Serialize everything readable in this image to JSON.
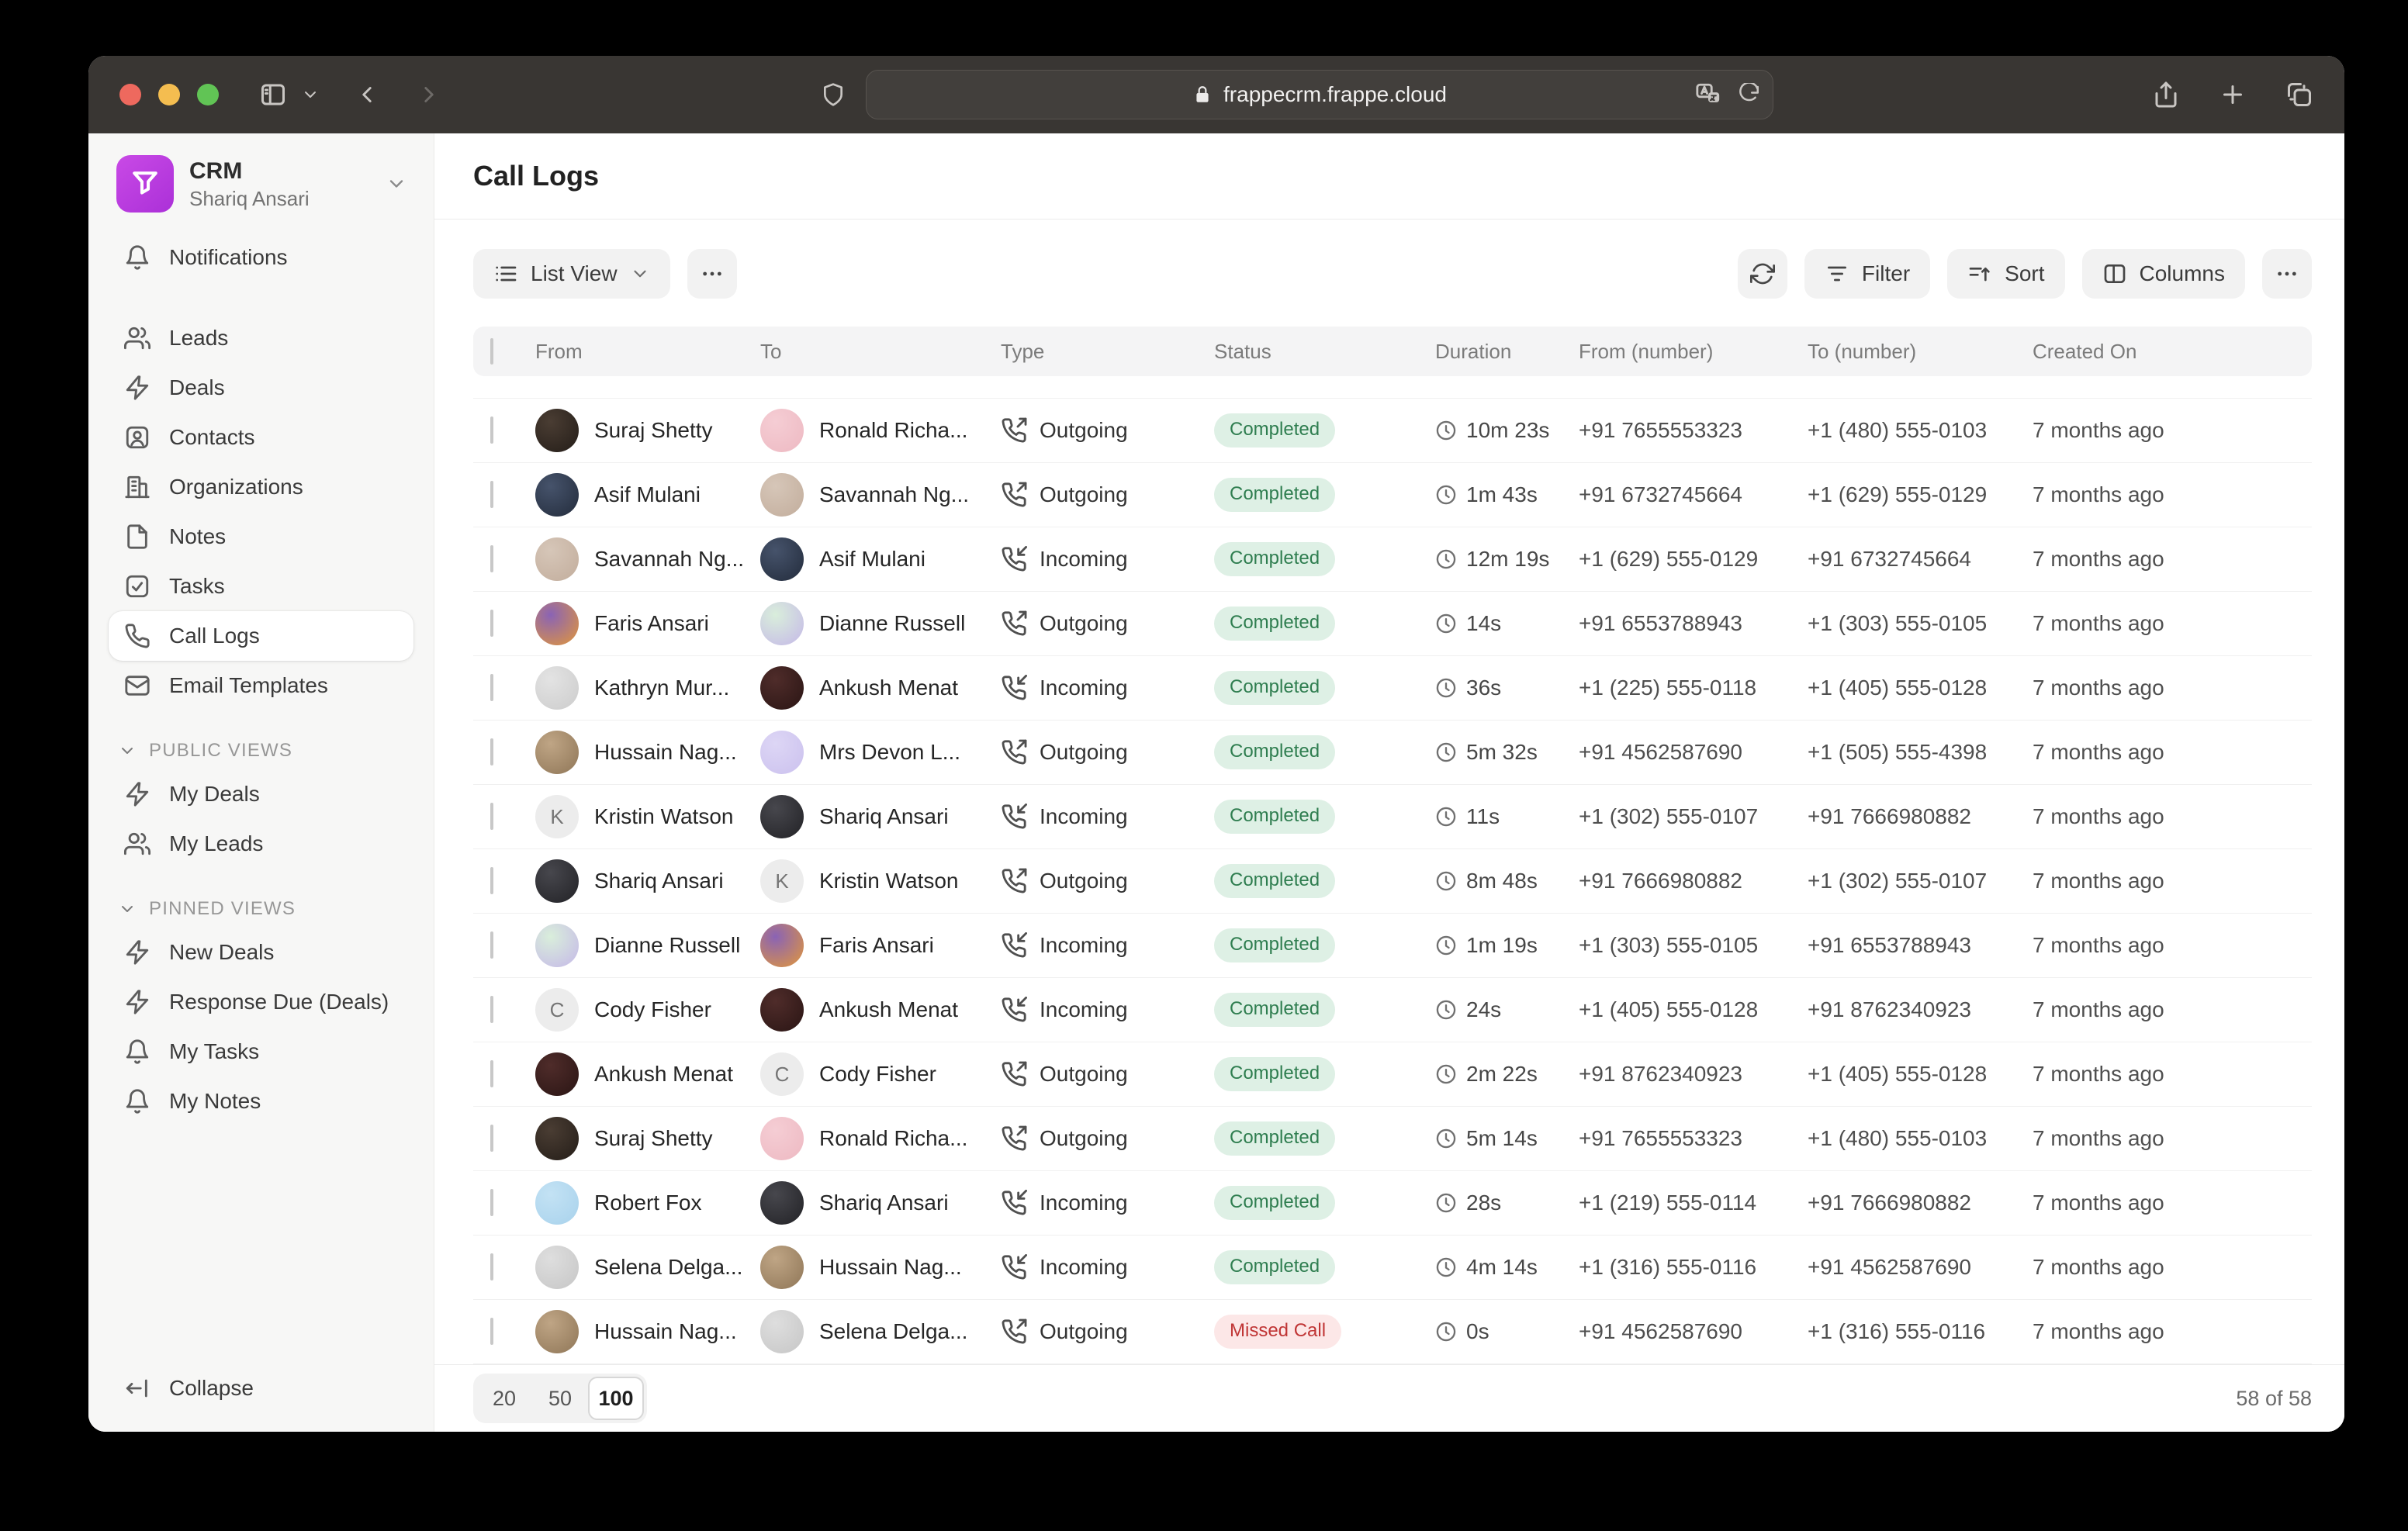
{
  "browser": {
    "url": "frappecrm.frappe.cloud"
  },
  "app_header": {
    "name": "CRM",
    "user": "Shariq Ansari"
  },
  "page": {
    "title": "Call Logs"
  },
  "sidebar": {
    "top_items": [
      {
        "label": "Notifications",
        "icon": "bell-icon",
        "selected": false
      }
    ],
    "nav_items": [
      {
        "label": "Leads",
        "icon": "users-icon",
        "selected": false
      },
      {
        "label": "Deals",
        "icon": "zap-icon",
        "selected": false
      },
      {
        "label": "Contacts",
        "icon": "contact-icon",
        "selected": false
      },
      {
        "label": "Organizations",
        "icon": "building-icon",
        "selected": false
      },
      {
        "label": "Notes",
        "icon": "file-icon",
        "selected": false
      },
      {
        "label": "Tasks",
        "icon": "check-square-icon",
        "selected": false
      },
      {
        "label": "Call Logs",
        "icon": "phone-icon",
        "selected": true
      },
      {
        "label": "Email Templates",
        "icon": "mail-icon",
        "selected": false
      }
    ],
    "sections": [
      {
        "title": "PUBLIC VIEWS",
        "items": [
          {
            "label": "My Deals",
            "icon": "zap-icon"
          },
          {
            "label": "My Leads",
            "icon": "users-icon"
          }
        ]
      },
      {
        "title": "PINNED VIEWS",
        "items": [
          {
            "label": "New Deals",
            "icon": "zap-icon"
          },
          {
            "label": "Response Due (Deals)",
            "icon": "zap-icon"
          },
          {
            "label": "My Tasks",
            "icon": "bell-icon"
          },
          {
            "label": "My Notes",
            "icon": "bell-icon"
          }
        ]
      }
    ],
    "collapse_label": "Collapse"
  },
  "toolbar": {
    "view_label": "List View",
    "filter_label": "Filter",
    "sort_label": "Sort",
    "columns_label": "Columns"
  },
  "table": {
    "columns": [
      "From",
      "To",
      "Type",
      "Status",
      "Duration",
      "From (number)",
      "To (number)",
      "Created On"
    ],
    "rows": [
      {
        "from": {
          "name": "Suraj Shetty",
          "avatar": {
            "bg": "#4a3d33",
            "bg2": "#241d18",
            "letter": ""
          }
        },
        "to": {
          "name": "Ronald Richa...",
          "avatar": {
            "bg": "#f5cdd4",
            "bg2": "#edb9c2",
            "letter": ""
          }
        },
        "type": "Outgoing",
        "status": "Completed",
        "duration": "10m 23s",
        "from_number": "+91 7655553323",
        "to_number": "+1 (480) 555-0103",
        "created": "7 months ago"
      },
      {
        "from": {
          "name": "Asif Mulani",
          "avatar": {
            "bg": "#46536b",
            "bg2": "#232c3c",
            "letter": ""
          }
        },
        "to": {
          "name": "Savannah Ng...",
          "avatar": {
            "bg": "#d6c6b8",
            "bg2": "#c2ad9c",
            "letter": ""
          }
        },
        "type": "Outgoing",
        "status": "Completed",
        "duration": "1m 43s",
        "from_number": "+91 6732745664",
        "to_number": "+1 (629) 555-0129",
        "created": "7 months ago"
      },
      {
        "from": {
          "name": "Savannah Ng...",
          "avatar": {
            "bg": "#d6c6b8",
            "bg2": "#c2ad9c",
            "letter": ""
          }
        },
        "to": {
          "name": "Asif Mulani",
          "avatar": {
            "bg": "#46536b",
            "bg2": "#232c3c",
            "letter": ""
          }
        },
        "type": "Incoming",
        "status": "Completed",
        "duration": "12m 19s",
        "from_number": "+1 (629) 555-0129",
        "to_number": "+91 6732745664",
        "created": "7 months ago"
      },
      {
        "from": {
          "name": "Faris Ansari",
          "avatar": {
            "bg": "#8a63b5",
            "bg2": "#e2973a",
            "letter": ""
          }
        },
        "to": {
          "name": "Dianne Russell",
          "avatar": {
            "bg": "#d9eedb",
            "bg2": "#c5b8e8",
            "letter": ""
          }
        },
        "type": "Outgoing",
        "status": "Completed",
        "duration": "14s",
        "from_number": "+91 6553788943",
        "to_number": "+1 (303) 555-0105",
        "created": "7 months ago"
      },
      {
        "from": {
          "name": "Kathryn Mur...",
          "avatar": {
            "bg": "#e3e3e3",
            "bg2": "#cccccc",
            "letter": ""
          }
        },
        "to": {
          "name": "Ankush Menat",
          "avatar": {
            "bg": "#4f2c2a",
            "bg2": "#2a1514",
            "letter": ""
          }
        },
        "type": "Incoming",
        "status": "Completed",
        "duration": "36s",
        "from_number": "+1 (225) 555-0118",
        "to_number": "+1 (405) 555-0128",
        "created": "7 months ago"
      },
      {
        "from": {
          "name": "Hussain Nag...",
          "avatar": {
            "bg": "#bfa585",
            "bg2": "#8f7657",
            "letter": ""
          }
        },
        "to": {
          "name": "Mrs Devon L...",
          "avatar": {
            "bg": "#ddd6f5",
            "bg2": "#cbc1ee",
            "letter": ""
          }
        },
        "type": "Outgoing",
        "status": "Completed",
        "duration": "5m 32s",
        "from_number": "+91 4562587690",
        "to_number": "+1 (505) 555-4398",
        "created": "7 months ago"
      },
      {
        "from": {
          "name": "Kristin Watson",
          "avatar": {
            "bg": "#ececec",
            "bg2": "#ececec",
            "letter": "K"
          }
        },
        "to": {
          "name": "Shariq Ansari",
          "avatar": {
            "bg": "#47474d",
            "bg2": "#222226",
            "letter": ""
          }
        },
        "type": "Incoming",
        "status": "Completed",
        "duration": "11s",
        "from_number": "+1 (302) 555-0107",
        "to_number": "+91 7666980882",
        "created": "7 months ago"
      },
      {
        "from": {
          "name": "Shariq Ansari",
          "avatar": {
            "bg": "#47474d",
            "bg2": "#222226",
            "letter": ""
          }
        },
        "to": {
          "name": "Kristin Watson",
          "avatar": {
            "bg": "#ececec",
            "bg2": "#ececec",
            "letter": "K"
          }
        },
        "type": "Outgoing",
        "status": "Completed",
        "duration": "8m 48s",
        "from_number": "+91 7666980882",
        "to_number": "+1 (302) 555-0107",
        "created": "7 months ago"
      },
      {
        "from": {
          "name": "Dianne Russell",
          "avatar": {
            "bg": "#d9eedb",
            "bg2": "#c5b8e8",
            "letter": ""
          }
        },
        "to": {
          "name": "Faris Ansari",
          "avatar": {
            "bg": "#8a63b5",
            "bg2": "#e2973a",
            "letter": ""
          }
        },
        "type": "Incoming",
        "status": "Completed",
        "duration": "1m 19s",
        "from_number": "+1 (303) 555-0105",
        "to_number": "+91 6553788943",
        "created": "7 months ago"
      },
      {
        "from": {
          "name": "Cody Fisher",
          "avatar": {
            "bg": "#ececec",
            "bg2": "#ececec",
            "letter": "C"
          }
        },
        "to": {
          "name": "Ankush Menat",
          "avatar": {
            "bg": "#4f2c2a",
            "bg2": "#2a1514",
            "letter": ""
          }
        },
        "type": "Incoming",
        "status": "Completed",
        "duration": "24s",
        "from_number": "+1 (405) 555-0128",
        "to_number": "+91 8762340923",
        "created": "7 months ago"
      },
      {
        "from": {
          "name": "Ankush Menat",
          "avatar": {
            "bg": "#4f2c2a",
            "bg2": "#2a1514",
            "letter": ""
          }
        },
        "to": {
          "name": "Cody Fisher",
          "avatar": {
            "bg": "#ececec",
            "bg2": "#ececec",
            "letter": "C"
          }
        },
        "type": "Outgoing",
        "status": "Completed",
        "duration": "2m 22s",
        "from_number": "+91 8762340923",
        "to_number": "+1 (405) 555-0128",
        "created": "7 months ago"
      },
      {
        "from": {
          "name": "Suraj Shetty",
          "avatar": {
            "bg": "#4a3d33",
            "bg2": "#241d18",
            "letter": ""
          }
        },
        "to": {
          "name": "Ronald Richa...",
          "avatar": {
            "bg": "#f5cdd4",
            "bg2": "#edb9c2",
            "letter": ""
          }
        },
        "type": "Outgoing",
        "status": "Completed",
        "duration": "5m 14s",
        "from_number": "+91 7655553323",
        "to_number": "+1 (480) 555-0103",
        "created": "7 months ago"
      },
      {
        "from": {
          "name": "Robert Fox",
          "avatar": {
            "bg": "#c3e2f4",
            "bg2": "#a8d2ec",
            "letter": ""
          }
        },
        "to": {
          "name": "Shariq Ansari",
          "avatar": {
            "bg": "#47474d",
            "bg2": "#222226",
            "letter": ""
          }
        },
        "type": "Incoming",
        "status": "Completed",
        "duration": "28s",
        "from_number": "+1 (219) 555-0114",
        "to_number": "+91 7666980882",
        "created": "7 months ago"
      },
      {
        "from": {
          "name": "Selena Delga...",
          "avatar": {
            "bg": "#dedede",
            "bg2": "#c6c6c6",
            "letter": ""
          }
        },
        "to": {
          "name": "Hussain Nag...",
          "avatar": {
            "bg": "#bfa585",
            "bg2": "#8f7657",
            "letter": ""
          }
        },
        "type": "Incoming",
        "status": "Completed",
        "duration": "4m 14s",
        "from_number": "+1 (316) 555-0116",
        "to_number": "+91 4562587690",
        "created": "7 months ago"
      },
      {
        "from": {
          "name": "Hussain Nag...",
          "avatar": {
            "bg": "#bfa585",
            "bg2": "#8f7657",
            "letter": ""
          }
        },
        "to": {
          "name": "Selena Delga...",
          "avatar": {
            "bg": "#dedede",
            "bg2": "#c6c6c6",
            "letter": ""
          }
        },
        "type": "Outgoing",
        "status": "Missed Call",
        "duration": "0s",
        "from_number": "+91 4562587690",
        "to_number": "+1 (316) 555-0116",
        "created": "7 months ago"
      }
    ]
  },
  "footer": {
    "page_sizes": [
      "20",
      "50",
      "100"
    ],
    "selected_page_size": "100",
    "count_label": "58 of 58"
  },
  "colors": {
    "accent_purple": "#bd41e2",
    "status_completed_bg": "#def0e5",
    "status_completed_text": "#2e7d4f",
    "status_missed_bg": "#fce7e7",
    "status_missed_text": "#c03535",
    "titlebar_bg": "#393633"
  }
}
